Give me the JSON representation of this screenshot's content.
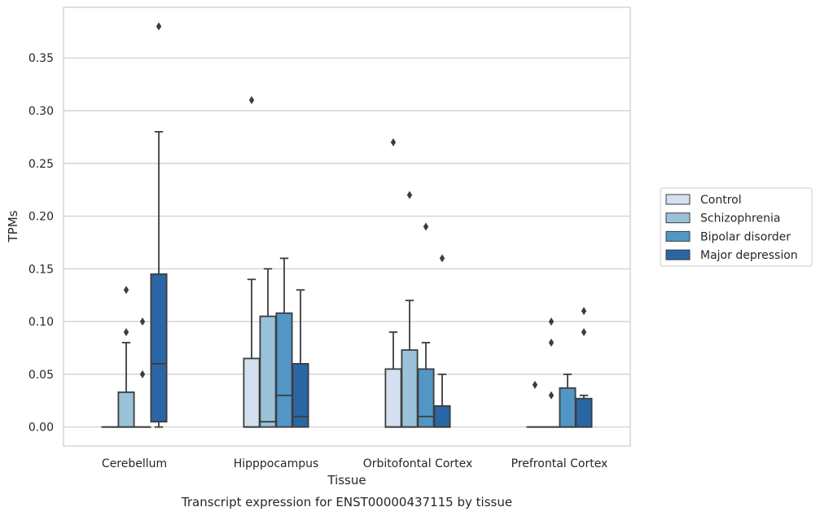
{
  "caption": "Transcript expression for ENST00000437115 by tissue",
  "chart_data": {
    "type": "box",
    "xlabel": "Tissue",
    "ylabel": "TPMs",
    "ylim": [
      -0.018,
      0.398
    ],
    "y_ticks": [
      "0.00",
      "0.05",
      "0.10",
      "0.15",
      "0.20",
      "0.25",
      "0.30",
      "0.35"
    ],
    "y_tick_values": [
      0,
      0.05,
      0.1,
      0.15,
      0.2,
      0.25,
      0.3,
      0.35
    ],
    "grid": true,
    "legend_placement": "right",
    "categories": [
      "Cerebellum",
      "Hipppocampus",
      "Orbitofontal Cortex",
      "Prefrontal Cortex"
    ],
    "series": [
      {
        "name": "Control",
        "color": "#d2e0ef",
        "boxes": [
          {
            "q1": 0,
            "median": 0,
            "q3": 0,
            "whislo": 0,
            "whishi": 0,
            "fliers": []
          },
          {
            "q1": 0,
            "median": 0,
            "q3": 0.065,
            "whislo": 0,
            "whishi": 0.14,
            "fliers": [
              0.31
            ]
          },
          {
            "q1": 0,
            "median": 0,
            "q3": 0.055,
            "whislo": 0,
            "whishi": 0.09,
            "fliers": [
              0.27
            ]
          },
          {
            "q1": 0,
            "median": 0,
            "q3": 0,
            "whislo": 0,
            "whishi": 0,
            "fliers": [
              0.04
            ]
          }
        ]
      },
      {
        "name": "Schizophrenia",
        "color": "#9ac2da",
        "boxes": [
          {
            "q1": 0,
            "median": 0,
            "q3": 0.033,
            "whislo": 0,
            "whishi": 0.08,
            "fliers": [
              0.09,
              0.13
            ]
          },
          {
            "q1": 0,
            "median": 0.005,
            "q3": 0.105,
            "whislo": 0,
            "whishi": 0.15,
            "fliers": []
          },
          {
            "q1": 0,
            "median": 0,
            "q3": 0.073,
            "whislo": 0,
            "whishi": 0.12,
            "fliers": [
              0.22
            ]
          },
          {
            "q1": 0,
            "median": 0,
            "q3": 0,
            "whislo": 0,
            "whishi": 0,
            "fliers": [
              0.03,
              0.08,
              0.1
            ]
          }
        ]
      },
      {
        "name": "Bipolar disorder",
        "color": "#5296c5",
        "boxes": [
          {
            "q1": 0,
            "median": 0,
            "q3": 0,
            "whislo": 0,
            "whishi": 0,
            "fliers": [
              0.05,
              0.1
            ]
          },
          {
            "q1": 0,
            "median": 0.03,
            "q3": 0.108,
            "whislo": 0,
            "whishi": 0.16,
            "fliers": []
          },
          {
            "q1": 0,
            "median": 0.01,
            "q3": 0.055,
            "whislo": 0,
            "whishi": 0.08,
            "fliers": [
              0.19
            ]
          },
          {
            "q1": 0,
            "median": 0,
            "q3": 0.037,
            "whislo": 0,
            "whishi": 0.05,
            "fliers": []
          }
        ]
      },
      {
        "name": "Major depression",
        "color": "#2a66a4",
        "boxes": [
          {
            "q1": 0.005,
            "median": 0.06,
            "q3": 0.145,
            "whislo": 0,
            "whishi": 0.28,
            "fliers": [
              0.38
            ]
          },
          {
            "q1": 0,
            "median": 0.01,
            "q3": 0.06,
            "whislo": 0,
            "whishi": 0.13,
            "fliers": []
          },
          {
            "q1": 0,
            "median": 0,
            "q3": 0.02,
            "whislo": 0,
            "whishi": 0.05,
            "fliers": [
              0.16
            ]
          },
          {
            "q1": 0,
            "median": 0,
            "q3": 0.027,
            "whislo": 0,
            "whishi": 0.03,
            "fliers": [
              0.09,
              0.11
            ]
          }
        ]
      }
    ],
    "colors": {
      "grid": "#cccccc",
      "frame": "#cccccc",
      "box_edge": "#3d3d3d",
      "flier": "#3d3d3d"
    }
  }
}
